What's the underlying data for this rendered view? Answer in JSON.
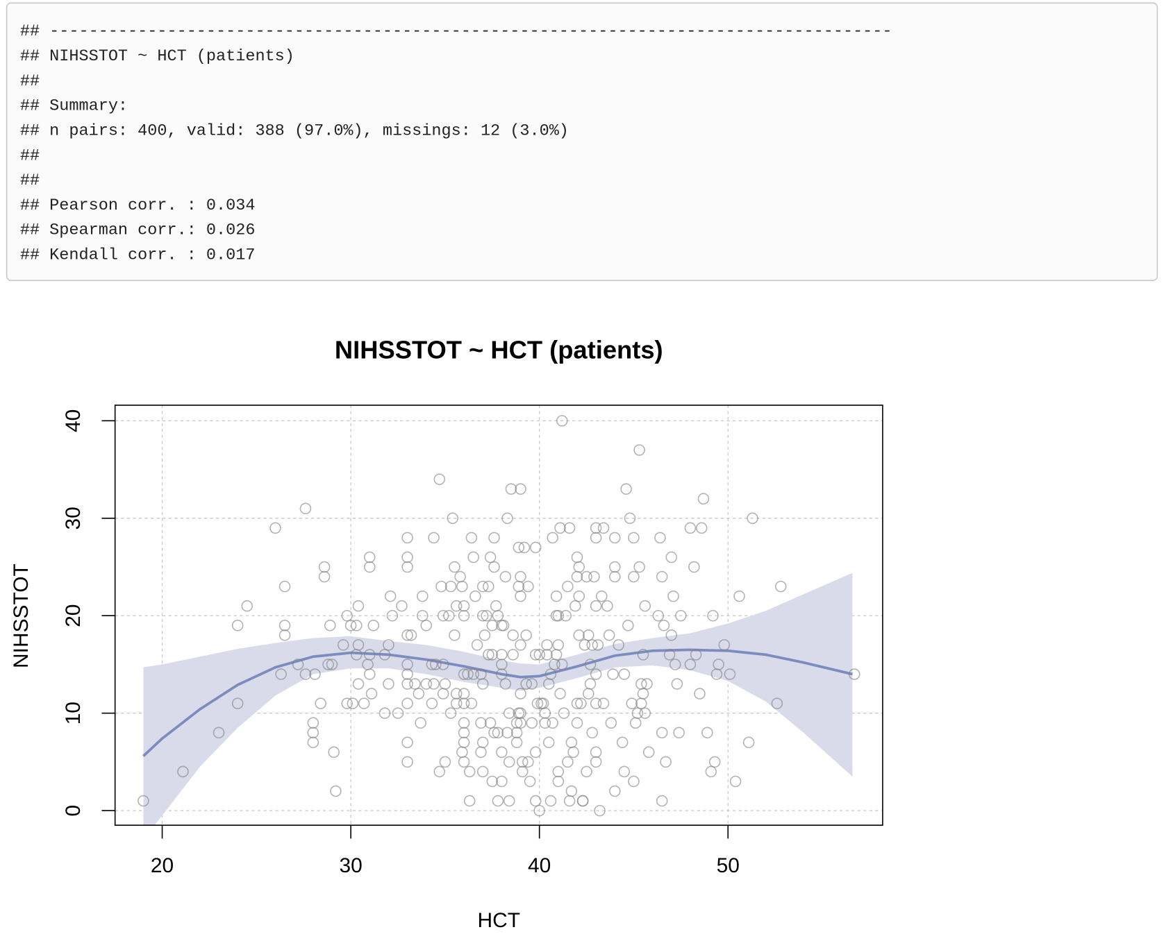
{
  "console": {
    "lines": [
      "## --------------------------------------------------------------------------------------",
      "## NIHSSTOT ~ HCT (patients)",
      "##",
      "## Summary:",
      "## n pairs: 400, valid: 388 (97.0%), missings: 12 (3.0%)",
      "##",
      "##",
      "## Pearson corr. : 0.034",
      "## Spearman corr.: 0.026",
      "## Kendall corr. : 0.017"
    ]
  },
  "chart_data": {
    "type": "scatter",
    "title": "NIHSSTOT ~ HCT (patients)",
    "x_label": "HCT",
    "y_label": "NIHSSTOT",
    "xlim": [
      17.5,
      58.2
    ],
    "ylim": [
      -1.5,
      41.6
    ],
    "xticks": [
      20,
      30,
      40,
      50
    ],
    "yticks": [
      0,
      10,
      20,
      30,
      40
    ],
    "grid": true,
    "points": {
      "color": "#808080",
      "x": [
        19,
        21.1,
        23,
        24,
        24,
        24.5,
        26,
        26.3,
        26.5,
        26.5,
        26.5,
        27.2,
        27.6,
        27.6,
        28,
        28,
        28,
        28.1,
        28.4,
        28.6,
        28.6,
        28.8,
        28.9,
        29,
        29.1,
        29.2,
        29.6,
        29.8,
        29.8,
        30,
        30.1,
        30.3,
        30.3,
        30.4,
        30.4,
        30.4,
        30.7,
        30.9,
        31,
        31,
        31,
        31,
        31.1,
        31.2,
        31.8,
        31.8,
        32,
        32,
        32.1,
        32.2,
        32.5,
        32.7,
        33,
        33,
        33,
        33,
        33,
        33,
        33,
        33,
        33,
        33,
        33.2,
        33.4,
        33.6,
        33.7,
        33.8,
        33.8,
        34,
        34,
        34.3,
        34.3,
        34.4,
        34.4,
        34.5,
        34.7,
        34.7,
        34.8,
        34.9,
        34.9,
        34.9,
        35,
        35,
        35.2,
        35.3,
        35.3,
        35.4,
        35.5,
        35.5,
        35.6,
        35.6,
        35.6,
        35.8,
        35.9,
        35.9,
        36,
        36,
        36,
        36,
        36,
        36,
        36,
        36,
        36,
        36.2,
        36.3,
        36.3,
        36.4,
        36.4,
        36.5,
        36.5,
        36.6,
        36.7,
        36.9,
        36.9,
        36.9,
        37,
        37,
        37,
        37,
        37,
        37.1,
        37.2,
        37.3,
        37.3,
        37.4,
        37.4,
        37.5,
        37.5,
        37.5,
        37.6,
        37.6,
        37.6,
        37.7,
        37.8,
        37.8,
        37.8,
        38,
        38,
        38,
        38,
        38,
        38,
        38.1,
        38.2,
        38.2,
        38.3,
        38.3,
        38.4,
        38.4,
        38.4,
        38.5,
        38.6,
        38.6,
        38.8,
        38.8,
        38.8,
        38.9,
        38.9,
        38.9,
        39,
        39,
        39,
        39,
        39,
        39,
        39,
        39.1,
        39.1,
        39.2,
        39.3,
        39.3,
        39.4,
        39.4,
        39.5,
        39.6,
        39.6,
        39.8,
        39.8,
        39.8,
        39.9,
        39.8,
        40,
        40,
        40.1,
        40.2,
        40.3,
        40.3,
        40.4,
        40.4,
        40.5,
        40.5,
        40.6,
        40.6,
        40.7,
        40.7,
        40.8,
        40.9,
        40.9,
        40.9,
        41,
        41,
        41,
        41,
        41.1,
        41.1,
        41.2,
        41.2,
        41.3,
        41.4,
        41.5,
        41.5,
        41.6,
        41.6,
        41.7,
        41.7,
        41.8,
        41.9,
        42,
        42,
        42,
        42,
        42.1,
        42.1,
        42.1,
        42.2,
        42.3,
        42.3,
        42.4,
        42.5,
        42.5,
        42.6,
        42.6,
        42.7,
        42.7,
        42.8,
        42.8,
        42.9,
        43,
        43,
        43,
        43,
        43,
        43,
        43,
        43.1,
        43.2,
        43.3,
        43.4,
        43.4,
        43.6,
        43.7,
        43.8,
        43.9,
        44,
        44,
        44,
        44,
        44.2,
        44.4,
        44.5,
        44.5,
        44.6,
        44.7,
        44.8,
        44.9,
        45,
        45,
        45,
        45.1,
        45.2,
        45.3,
        45.3,
        45.4,
        45.4,
        45.5,
        45.5,
        45.6,
        45.6,
        45.7,
        45.8,
        46.3,
        46.4,
        46.5,
        46.5,
        46.5,
        46.6,
        46.7,
        46.9,
        47,
        47,
        47.1,
        47.2,
        47.3,
        47.4,
        47.5,
        48,
        48,
        48.2,
        48.3,
        48.5,
        48.6,
        48.7,
        48.9,
        49.1,
        49.2,
        49.3,
        49.4,
        49.5,
        49.8,
        50.1,
        50.4,
        50.6,
        51.1,
        51.3,
        52.6,
        52.8,
        56.7
      ],
      "values": [
        1,
        4,
        8,
        11,
        19,
        21,
        29,
        14,
        23,
        19,
        18,
        15,
        31,
        14,
        9,
        8,
        7,
        14,
        11,
        25,
        24,
        15,
        19,
        15,
        6,
        2,
        17,
        20,
        11,
        19,
        11,
        19,
        16,
        21,
        13,
        17,
        11,
        15,
        26,
        25,
        14,
        16,
        12,
        19,
        16,
        10,
        17,
        13,
        22,
        20,
        10,
        21,
        28,
        26,
        25,
        18,
        15,
        14,
        13,
        11,
        7,
        5,
        18,
        13,
        12,
        9,
        20,
        22,
        13,
        19,
        15,
        11,
        28,
        13,
        15,
        4,
        34,
        23,
        15,
        12,
        20,
        13,
        5,
        20,
        23,
        10,
        30,
        25,
        18,
        21,
        11,
        12,
        24,
        6,
        23,
        14,
        8,
        9,
        11,
        5,
        7,
        12,
        20,
        21,
        14,
        1,
        4,
        11,
        28,
        14,
        26,
        22,
        17,
        14,
        6,
        9,
        13,
        20,
        23,
        7,
        4,
        18,
        20,
        16,
        23,
        9,
        26,
        16,
        19,
        3,
        8,
        28,
        25,
        21,
        20,
        8,
        1,
        15,
        6,
        3,
        19,
        16,
        14,
        19,
        24,
        13,
        8,
        30,
        5,
        10,
        1,
        33,
        16,
        18,
        8,
        9,
        7,
        10,
        23,
        27,
        9,
        10,
        12,
        33,
        24,
        22,
        17,
        5,
        4,
        27,
        13,
        18,
        23,
        5,
        3,
        9,
        13,
        27,
        6,
        16,
        11,
        1,
        16,
        0,
        11,
        11,
        10,
        9,
        16,
        17,
        13,
        7,
        14,
        1,
        9,
        28,
        15,
        22,
        20,
        16,
        4,
        3,
        17,
        20,
        29,
        12,
        15,
        40,
        10,
        20,
        23,
        5,
        29,
        1,
        7,
        2,
        6,
        21,
        9,
        24,
        26,
        11,
        18,
        22,
        25,
        11,
        1,
        1,
        17,
        24,
        4,
        18,
        12,
        13,
        15,
        17,
        8,
        24,
        21,
        5,
        6,
        14,
        28,
        29,
        11,
        17,
        0,
        22,
        11,
        29,
        21,
        18,
        9,
        14,
        25,
        28,
        24,
        2,
        17,
        7,
        14,
        4,
        33,
        19,
        30,
        11,
        24,
        28,
        3,
        9,
        10,
        37,
        25,
        13,
        11,
        12,
        16,
        10,
        21,
        13,
        6,
        20,
        28,
        24,
        1,
        8,
        19,
        5,
        16,
        26,
        18,
        22,
        15,
        13,
        8,
        20,
        15,
        29,
        25,
        16,
        12,
        29,
        32,
        8,
        4,
        20,
        5,
        14,
        15,
        17,
        14,
        3,
        22,
        7,
        30,
        11,
        23,
        14
      ]
    },
    "fit": {
      "color": "#7b8cbf",
      "band_color": "#d9dbeb",
      "x": [
        19,
        20,
        22,
        24,
        26,
        28,
        30,
        32,
        34,
        36,
        38,
        39,
        40,
        42,
        44,
        46,
        48,
        50,
        52,
        54,
        56.6
      ],
      "values": [
        5.6,
        7.4,
        10.4,
        12.9,
        14.7,
        15.8,
        16.2,
        16,
        15.5,
        14.8,
        14,
        13.7,
        13.8,
        14.8,
        15.9,
        16.4,
        16.5,
        16.4,
        16,
        15.2,
        14
      ],
      "lower": [
        -3,
        -0.5,
        4.5,
        8.5,
        11.8,
        14,
        14.6,
        14.6,
        14,
        13.2,
        12.6,
        12.3,
        12.6,
        13.6,
        14.7,
        14.9,
        14.4,
        13.3,
        11.2,
        8,
        3.5
      ],
      "upper": [
        14.7,
        15,
        15.8,
        16.6,
        17.2,
        17.7,
        17.9,
        17.4,
        17,
        16.3,
        15.4,
        15.1,
        15,
        16,
        17.1,
        17.7,
        18.2,
        19.2,
        20.5,
        22.2,
        24.4
      ]
    }
  }
}
